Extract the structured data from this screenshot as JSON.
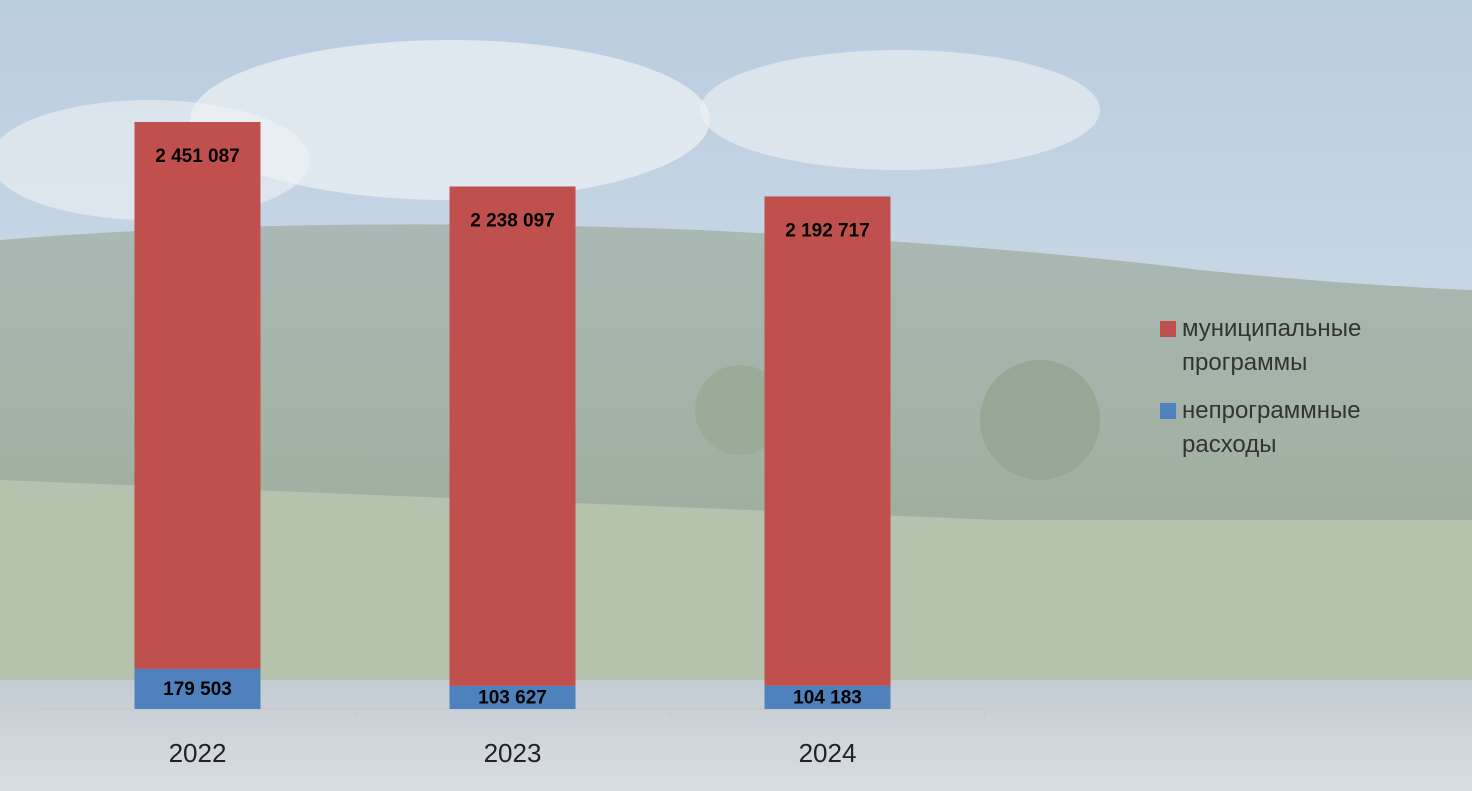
{
  "chart_data": {
    "type": "stacked_bar",
    "categories": [
      "2022",
      "2023",
      "2024"
    ],
    "series": [
      {
        "name": "муниципальные программы",
        "color": "#c0504d",
        "values": [
          2451087,
          2238097,
          2192717
        ],
        "value_labels": [
          "2 451 087",
          "2 238 097",
          "2 192 717"
        ]
      },
      {
        "name": "непрограммные расходы",
        "color": "#4f81bd",
        "values": [
          179503,
          103627,
          104183
        ],
        "value_labels": [
          "179 503",
          "103 627",
          "104 183"
        ]
      }
    ],
    "legend": "right"
  }
}
